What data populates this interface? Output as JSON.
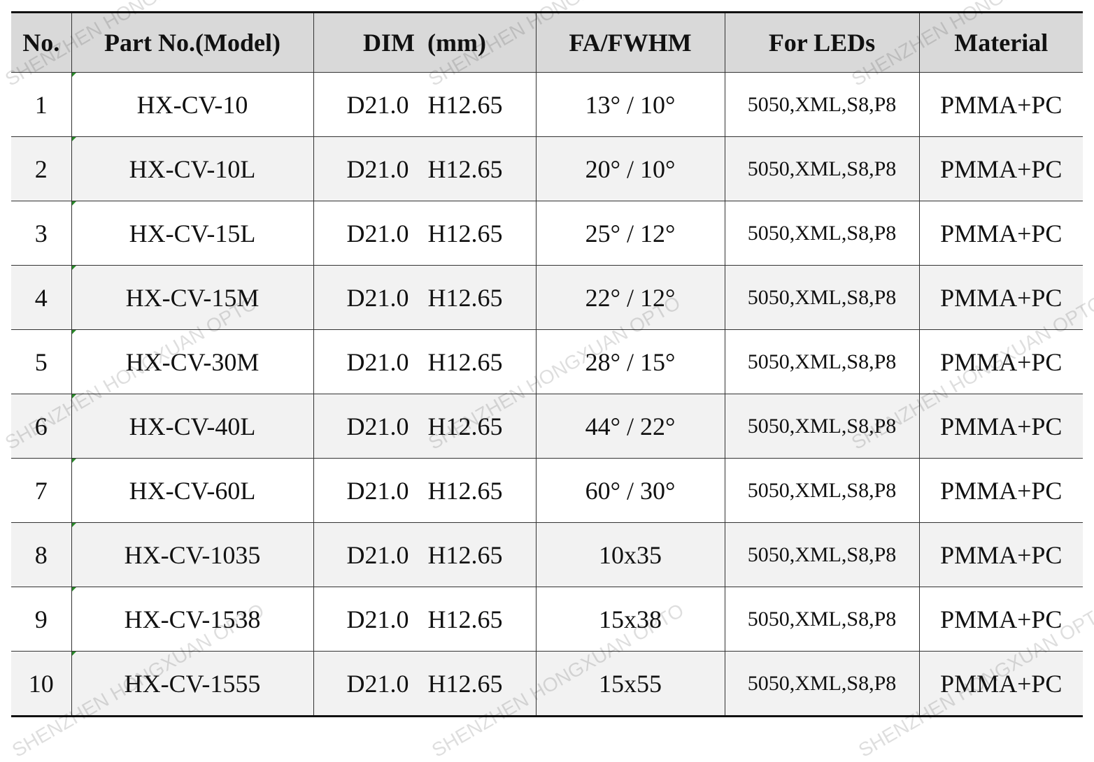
{
  "table": {
    "header": [
      "No.",
      "Part No.(Model)",
      "DIM  (mm)",
      "FA/FWHM",
      "For LEDs",
      "Material"
    ],
    "rows": [
      [
        "1",
        "HX-CV-10",
        "D21.0   H12.65",
        "13° / 10°",
        "5050,XML,S8,P8",
        "PMMA+PC"
      ],
      [
        "2",
        "HX-CV-10L",
        "D21.0   H12.65",
        "20° / 10°",
        "5050,XML,S8,P8",
        "PMMA+PC"
      ],
      [
        "3",
        "HX-CV-15L",
        "D21.0   H12.65",
        "25° / 12°",
        "5050,XML,S8,P8",
        "PMMA+PC"
      ],
      [
        "4",
        "HX-CV-15M",
        "D21.0   H12.65",
        "22° / 12°",
        "5050,XML,S8,P8",
        "PMMA+PC"
      ],
      [
        "5",
        "HX-CV-30M",
        "D21.0   H12.65",
        "28° / 15°",
        "5050,XML,S8,P8",
        "PMMA+PC"
      ],
      [
        "6",
        "HX-CV-40L",
        "D21.0   H12.65",
        "44° / 22°",
        "5050,XML,S8,P8",
        "PMMA+PC"
      ],
      [
        "7",
        "HX-CV-60L",
        "D21.0   H12.65",
        "60° / 30°",
        "5050,XML,S8,P8",
        "PMMA+PC"
      ],
      [
        "8",
        "HX-CV-1035",
        "D21.0   H12.65",
        "10x35",
        "5050,XML,S8,P8",
        "PMMA+PC"
      ],
      [
        "9",
        "HX-CV-1538",
        "D21.0   H12.65",
        "15x38",
        "5050,XML,S8,P8",
        "PMMA+PC"
      ],
      [
        "10",
        "HX-CV-1555",
        "D21.0   H12.65",
        "15x55",
        "5050,XML,S8,P8",
        "PMMA+PC"
      ]
    ]
  },
  "watermark": "SHENZHEN HONGXUAN OPTO"
}
